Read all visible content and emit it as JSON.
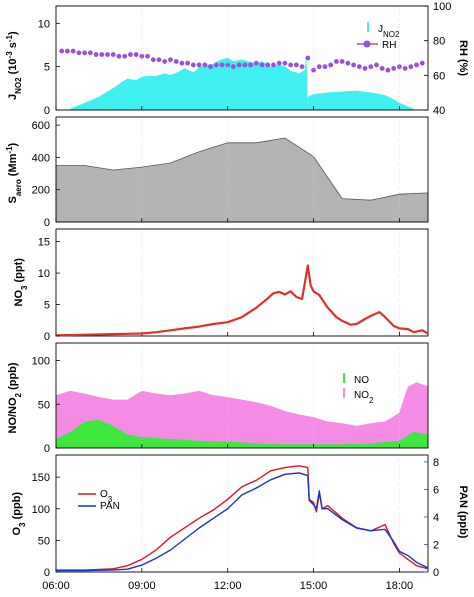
{
  "colors": {
    "jno2": "#40f0f0",
    "rh": "#9b4fd8",
    "saero": "#b4b4b4",
    "no3": "#e0302a",
    "no": "#3ee63e",
    "no2": "#f48ce6",
    "o3": "#e0141e",
    "pan": "#1434c8",
    "pan_axis": "#1450c8"
  },
  "x_axis": {
    "range_hours": [
      6,
      19
    ],
    "ticks": [
      {
        "value": 6,
        "label": "06:00"
      },
      {
        "value": 9,
        "label": "09:00"
      },
      {
        "value": 12,
        "label": "12:00"
      },
      {
        "value": 15,
        "label": "15:00"
      },
      {
        "value": 18,
        "label": "18:00"
      }
    ]
  },
  "chart_data": [
    {
      "type": "area",
      "panel": "photolysis",
      "ylabel_left": "J_NO2 (10^-3 s^-1)",
      "ylabel_right": "RH (%)",
      "ylim": [
        0,
        12
      ],
      "y_ticks": [
        "0",
        "5",
        "10"
      ],
      "y2lim": [
        40,
        100
      ],
      "y2_ticks": [
        "40",
        "60",
        "80",
        "100"
      ],
      "legend": [
        "J_NO2",
        "RH"
      ],
      "series": [
        {
          "name": "J_NO2",
          "kind": "area",
          "x": [
            6.5,
            7.0,
            7.5,
            8.0,
            8.3,
            8.5,
            8.8,
            9.0,
            9.2,
            9.5,
            9.8,
            10.0,
            10.3,
            10.5,
            10.8,
            11.0,
            11.3,
            11.5,
            11.7,
            12.0,
            12.2,
            12.5,
            12.8,
            13.0,
            13.2,
            13.5,
            13.8,
            14.0,
            14.2,
            14.5,
            14.7,
            14.75,
            14.78,
            14.8,
            15.0,
            15.5,
            16.0,
            16.5,
            17.0,
            17.5,
            17.8,
            18.0,
            18.5
          ],
          "values": [
            0.1,
            0.8,
            1.5,
            2.5,
            3.2,
            3.6,
            3.4,
            3.8,
            3.9,
            3.9,
            4.2,
            4.0,
            4.4,
            4.8,
            4.3,
            4.9,
            5.2,
            5.3,
            5.7,
            6.0,
            5.6,
            5.8,
            5.5,
            5.4,
            5.6,
            5.0,
            5.2,
            5.0,
            4.5,
            4.2,
            4.6,
            6.0,
            0.5,
            1.5,
            1.8,
            2.0,
            2.1,
            2.2,
            2.0,
            1.7,
            1.2,
            0.8,
            0.1
          ]
        },
        {
          "name": "RH",
          "kind": "scatter",
          "x": [
            6.2,
            6.4,
            6.6,
            6.8,
            7.0,
            7.2,
            7.4,
            7.6,
            7.8,
            8.0,
            8.2,
            8.4,
            8.6,
            8.8,
            9.0,
            9.2,
            9.4,
            9.6,
            9.8,
            10.0,
            10.2,
            10.4,
            10.6,
            10.8,
            11.0,
            11.2,
            11.4,
            11.6,
            11.8,
            12.0,
            12.2,
            12.4,
            12.6,
            12.8,
            13.0,
            13.2,
            13.4,
            13.6,
            13.8,
            14.0,
            14.2,
            14.4,
            14.6,
            14.8,
            15.0,
            15.2,
            15.4,
            15.6,
            15.8,
            16.0,
            16.2,
            16.4,
            16.6,
            16.8,
            17.0,
            17.2,
            17.4,
            17.6,
            17.8,
            18.0,
            18.2,
            18.4,
            18.6,
            18.8
          ],
          "values": [
            74,
            74,
            74,
            73,
            73,
            73,
            72,
            72,
            72,
            72,
            71,
            71,
            72,
            72,
            71,
            71,
            69,
            69,
            68,
            69,
            68,
            67,
            67,
            66,
            66,
            66,
            65,
            66,
            66,
            66,
            65,
            66,
            66,
            66,
            67,
            66,
            66,
            66,
            67,
            67,
            66,
            66,
            65,
            70,
            63,
            65,
            65,
            66,
            68,
            68,
            67,
            66,
            65,
            64,
            65,
            66,
            64,
            63,
            64,
            65,
            64,
            65,
            66,
            67
          ]
        }
      ]
    },
    {
      "type": "area",
      "panel": "aerosol",
      "ylabel": "S_aero (Mm^-1)",
      "ylim": [
        0,
        650
      ],
      "y_ticks": [
        "0",
        "200",
        "400",
        "600"
      ],
      "series": [
        {
          "name": "S_aero",
          "x": [
            6.0,
            7.0,
            8.0,
            9.0,
            10.0,
            11.0,
            12.0,
            13.0,
            14.0,
            15.0,
            16.0,
            17.0,
            18.0,
            19.0
          ],
          "values": [
            350,
            350,
            322,
            340,
            365,
            435,
            490,
            490,
            520,
            405,
            145,
            135,
            172,
            180
          ]
        }
      ]
    },
    {
      "type": "line",
      "panel": "nitrate",
      "ylabel": "NO_3 (ppt)",
      "ylim": [
        0,
        17
      ],
      "y_ticks": [
        "0",
        "5",
        "10",
        "15"
      ],
      "series": [
        {
          "name": "NO3",
          "x": [
            6.0,
            7.0,
            8.0,
            9.0,
            9.5,
            10.0,
            10.5,
            11.0,
            11.5,
            12.0,
            12.5,
            13.0,
            13.3,
            13.6,
            13.8,
            14.0,
            14.2,
            14.4,
            14.6,
            14.8,
            14.9,
            15.0,
            15.2,
            15.5,
            15.8,
            16.0,
            16.3,
            16.5,
            16.8,
            17.0,
            17.3,
            17.5,
            17.8,
            18.0,
            18.3,
            18.5,
            18.8,
            19.0
          ],
          "values": [
            0.1,
            0.2,
            0.3,
            0.4,
            0.6,
            0.9,
            1.2,
            1.5,
            1.9,
            2.2,
            3.0,
            4.5,
            5.6,
            6.8,
            7.0,
            6.6,
            7.1,
            6.2,
            5.9,
            11.2,
            8.0,
            7.1,
            6.5,
            4.5,
            3.0,
            2.4,
            1.8,
            1.9,
            2.7,
            3.2,
            3.8,
            3.0,
            1.6,
            1.2,
            1.1,
            0.6,
            0.9,
            0.4
          ]
        }
      ]
    },
    {
      "type": "area",
      "panel": "nox",
      "ylabel": "NO/NO_2 (ppb)",
      "ylim": [
        0,
        120
      ],
      "y_ticks": [
        "0",
        "50",
        "100"
      ],
      "legend": [
        "NO",
        "NO_2"
      ],
      "series": [
        {
          "name": "NO",
          "x": [
            6.0,
            6.5,
            7.0,
            7.5,
            8.0,
            8.5,
            9.0,
            9.5,
            10.0,
            10.5,
            11.0,
            12.0,
            13.0,
            14.0,
            15.0,
            16.0,
            17.0,
            18.0,
            18.5,
            19.0
          ],
          "values": [
            10,
            18,
            30,
            32,
            25,
            15,
            12,
            11,
            10,
            9,
            8,
            7,
            5,
            4,
            4,
            4,
            5,
            8,
            18,
            15
          ]
        },
        {
          "name": "NO_2",
          "x": [
            6.0,
            6.5,
            7.0,
            7.5,
            8.0,
            8.5,
            9.0,
            9.5,
            10.0,
            10.5,
            11.0,
            11.5,
            12.0,
            12.5,
            13.0,
            13.5,
            14.0,
            14.5,
            15.0,
            15.5,
            16.0,
            16.5,
            17.0,
            17.5,
            18.0,
            18.3,
            18.6,
            19.0
          ],
          "values": [
            60,
            65,
            62,
            58,
            55,
            55,
            65,
            62,
            60,
            62,
            65,
            60,
            58,
            55,
            52,
            48,
            42,
            38,
            35,
            30,
            28,
            25,
            28,
            30,
            40,
            70,
            75,
            70
          ]
        }
      ]
    },
    {
      "type": "line",
      "panel": "ozone-pan",
      "ylabel_left": "O_3 (ppb)",
      "ylabel_right": "PAN (ppb)",
      "ylim": [
        0,
        185
      ],
      "y_ticks": [
        "0",
        "50",
        "100",
        "150"
      ],
      "y2lim": [
        0,
        8.5
      ],
      "y2_ticks": [
        "0",
        "2",
        "4",
        "6",
        "8"
      ],
      "legend": [
        "O_3",
        "PAN"
      ],
      "series": [
        {
          "name": "O_3",
          "axis": "left",
          "x": [
            6.0,
            7.0,
            8.0,
            8.5,
            9.0,
            9.5,
            10.0,
            10.5,
            11.0,
            11.5,
            12.0,
            12.5,
            13.0,
            13.5,
            14.0,
            14.5,
            14.8,
            14.85,
            15.0,
            15.1,
            15.2,
            15.3,
            15.5,
            16.0,
            16.5,
            17.0,
            17.5,
            17.8,
            18.0,
            18.3,
            18.6,
            19.0
          ],
          "values": [
            3,
            3,
            5,
            10,
            20,
            35,
            55,
            70,
            85,
            98,
            115,
            135,
            145,
            160,
            165,
            168,
            165,
            115,
            110,
            95,
            125,
            100,
            105,
            85,
            70,
            65,
            75,
            45,
            30,
            20,
            10,
            5
          ]
        },
        {
          "name": "PAN",
          "axis": "right",
          "x": [
            6.0,
            7.0,
            8.0,
            8.5,
            9.0,
            9.5,
            10.0,
            10.5,
            11.0,
            11.5,
            12.0,
            12.5,
            13.0,
            13.5,
            14.0,
            14.5,
            14.8,
            14.85,
            15.0,
            15.1,
            15.2,
            15.3,
            15.5,
            16.0,
            16.5,
            17.0,
            17.5,
            17.8,
            18.0,
            18.3,
            18.6,
            19.0
          ],
          "values": [
            0.1,
            0.1,
            0.15,
            0.2,
            0.5,
            1.0,
            1.6,
            2.4,
            3.2,
            3.9,
            4.6,
            5.6,
            6.1,
            6.7,
            7.1,
            7.2,
            7.0,
            5.2,
            4.9,
            4.6,
            5.9,
            4.6,
            4.6,
            3.8,
            3.2,
            3.0,
            3.1,
            2.2,
            1.5,
            1.2,
            0.7,
            0.3
          ]
        }
      ]
    }
  ]
}
